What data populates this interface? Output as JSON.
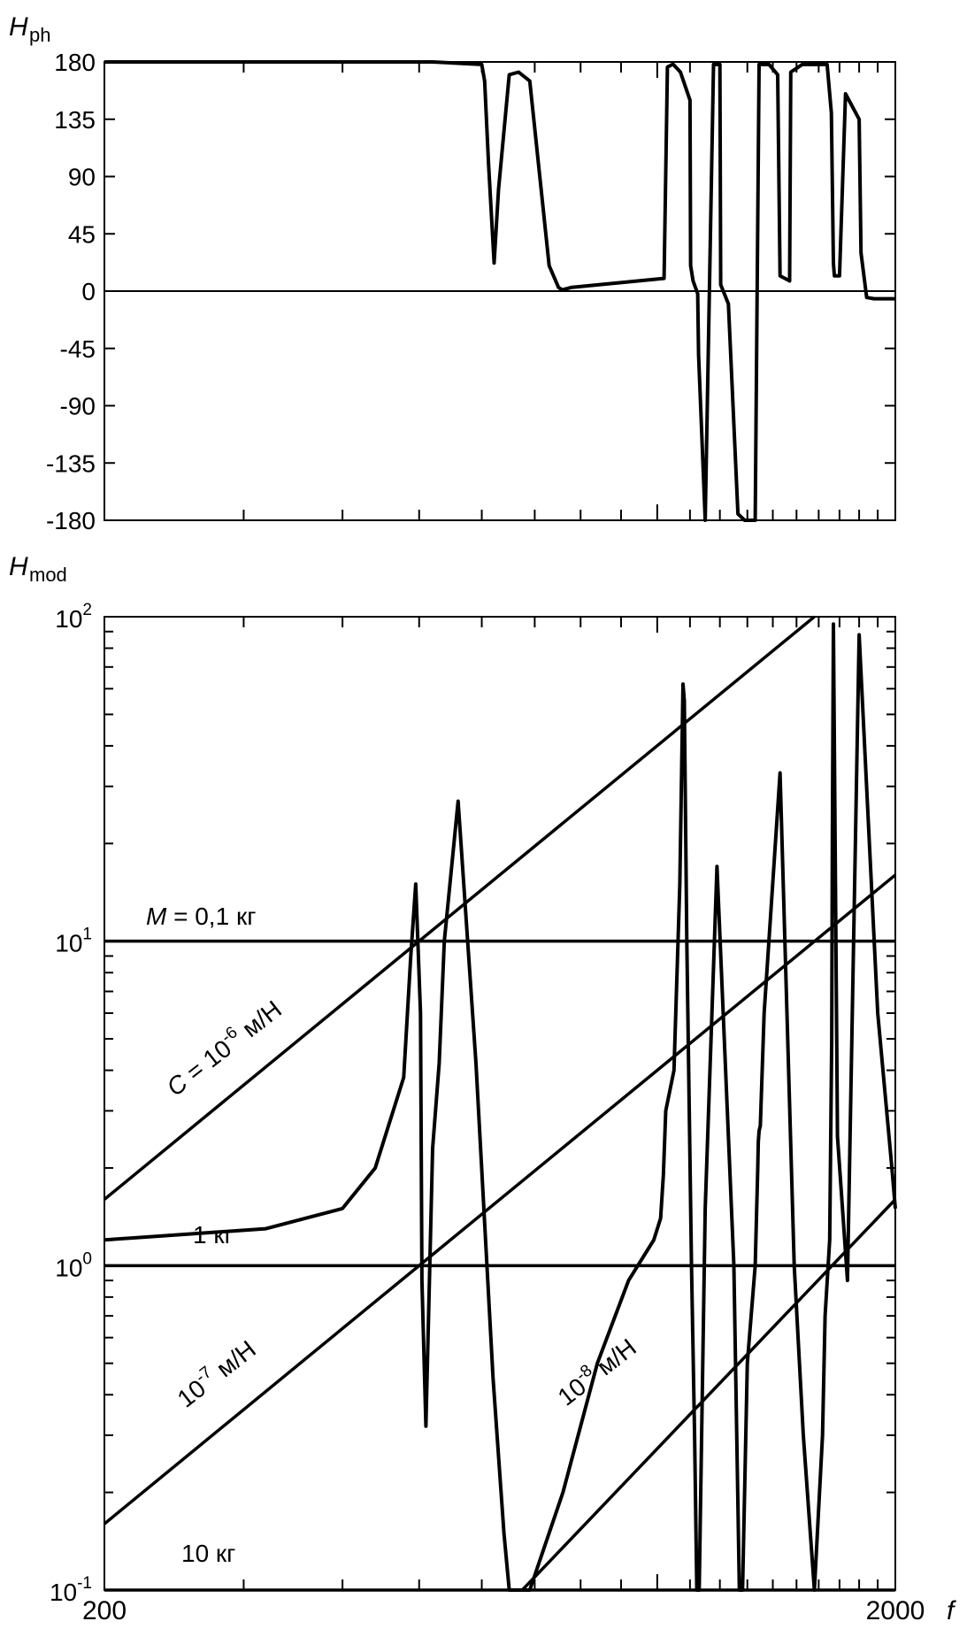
{
  "chart_data": [
    {
      "type": "line",
      "ylabel": "H",
      "ylabel_sub": "ph",
      "xscale": "log",
      "xlim": [
        200,
        2000
      ],
      "ylim": [
        -180,
        180
      ],
      "yticks": [
        "180",
        "135",
        "90",
        "45",
        "0",
        "-45",
        "-90",
        "-135",
        "-180"
      ],
      "ytick_values": [
        180,
        135,
        90,
        45,
        0,
        -45,
        -90,
        -135,
        -180
      ],
      "xticks_minor": [
        300,
        400,
        500,
        600,
        700,
        800,
        900,
        1000,
        1100,
        1200,
        1300,
        1400,
        1500,
        1600,
        1700,
        1800,
        1900
      ],
      "xticks_major": [
        1000
      ],
      "series": [
        {
          "x": [
            200,
            520,
            600,
            605,
            612,
            622,
            630,
            650,
            668,
            690,
            730,
            750,
            758,
            780,
            1020,
            1030,
            1045,
            1048,
            1070,
            1100,
            1102,
            1110,
            1125,
            1128,
            1150,
            1178,
            1200,
            1203,
            1230,
            1265,
            1285,
            1290,
            1330,
            1345,
            1350,
            1385,
            1420,
            1430,
            1470,
            1475,
            1525,
            1570,
            1602,
            1640,
            1660,
            1670,
            1675,
            1700,
            1730,
            1800,
            1810,
            1840,
            1880,
            1920,
            1930,
            1950,
            2000
          ],
          "y": [
            180,
            180,
            178,
            165,
            100,
            22,
            80,
            170,
            172,
            165,
            20,
            3,
            1,
            3,
            10,
            176,
            178,
            178,
            172,
            150,
            20,
            8,
            -2,
            -50,
            -180,
            178,
            178,
            5,
            -10,
            -175,
            -179,
            -180,
            -180,
            178,
            178,
            178,
            170,
            12,
            8,
            172,
            178,
            178,
            178,
            178,
            140,
            22,
            12,
            12,
            155,
            135,
            30,
            -5,
            -6,
            -6,
            -6,
            -6,
            -6
          ]
        }
      ]
    },
    {
      "type": "line",
      "ylabel": "H",
      "ylabel_sub": "mod",
      "xlabel": "f",
      "xscale": "log",
      "yscale": "log",
      "xlim": [
        200,
        2000
      ],
      "ylim": [
        0.1,
        100
      ],
      "xtick_labels": [
        "200",
        "2000"
      ],
      "yticks": [
        {
          "base": "10",
          "exp": "2",
          "value": 100
        },
        {
          "base": "10",
          "exp": "1",
          "value": 10
        },
        {
          "base": "10",
          "exp": "0",
          "value": 1
        },
        {
          "base": "10",
          "exp": "-1",
          "value": 0.1
        }
      ],
      "reference_lines": [
        {
          "kind": "mass",
          "label_prefix": "M",
          "label": " = 0,1 кг",
          "value": 10
        },
        {
          "kind": "mass",
          "label": "1 кг",
          "value": 1
        },
        {
          "kind": "mass",
          "label": "10 кг",
          "value": 0.1
        },
        {
          "kind": "compliance",
          "label_prefix": "C",
          "label_base": " = 10",
          "label_exp": "-6",
          "label_unit": "  м/Н",
          "points": [
            [
              200,
              1.6
            ],
            [
              1580,
              100
            ]
          ]
        },
        {
          "kind": "compliance",
          "label_base": "10",
          "label_exp": "-7",
          "label_unit": "  м/Н",
          "points": [
            [
              200,
              0.16
            ],
            [
              2000,
              16
            ]
          ]
        },
        {
          "kind": "compliance",
          "label_base": "10",
          "label_exp": "-8",
          "label_unit": "  м/Н",
          "points": [
            [
              675,
              0.1
            ],
            [
              2000,
              1.6
            ]
          ]
        }
      ],
      "series": [
        {
          "x": [
            200,
            320,
            400,
            440,
            478,
            488,
            495,
            502,
            504,
            510,
            520,
            530,
            538,
            560,
            590,
            620,
            640,
            650,
            690,
            760,
            840,
            920,
            990,
            1010,
            1018,
            1025,
            1050,
            1068,
            1078,
            1082,
            1090,
            1105,
            1115,
            1122,
            1130,
            1150,
            1190,
            1250,
            1270,
            1275,
            1282,
            1300,
            1330,
            1340,
            1342,
            1345,
            1350,
            1365,
            1430,
            1490,
            1530,
            1580,
            1618,
            1630,
            1652,
            1662,
            1665,
            1670,
            1690,
            1740,
            1800,
            1900,
            1980,
            2000
          ],
          "y": [
            1.2,
            1.3,
            1.5,
            2.0,
            3.8,
            9.0,
            15.0,
            6.0,
            0.9,
            0.32,
            2.3,
            4.2,
            10.0,
            27.0,
            4.2,
            0.45,
            0.15,
            0.1,
            0.1,
            0.2,
            0.5,
            0.9,
            1.2,
            1.4,
            1.9,
            3.0,
            4.0,
            15.0,
            62.0,
            55.0,
            10.0,
            1.0,
            0.3,
            0.1,
            0.1,
            1.5,
            17.0,
            1.0,
            0.1,
            0.1,
            0.1,
            0.5,
            1.0,
            2.0,
            2.4,
            2.6,
            2.7,
            6.0,
            33.0,
            1.0,
            0.3,
            0.1,
            0.3,
            0.7,
            1.2,
            5.0,
            20.0,
            95.0,
            2.5,
            0.9,
            88.0,
            6.0,
            2.0,
            1.5
          ]
        }
      ]
    }
  ]
}
